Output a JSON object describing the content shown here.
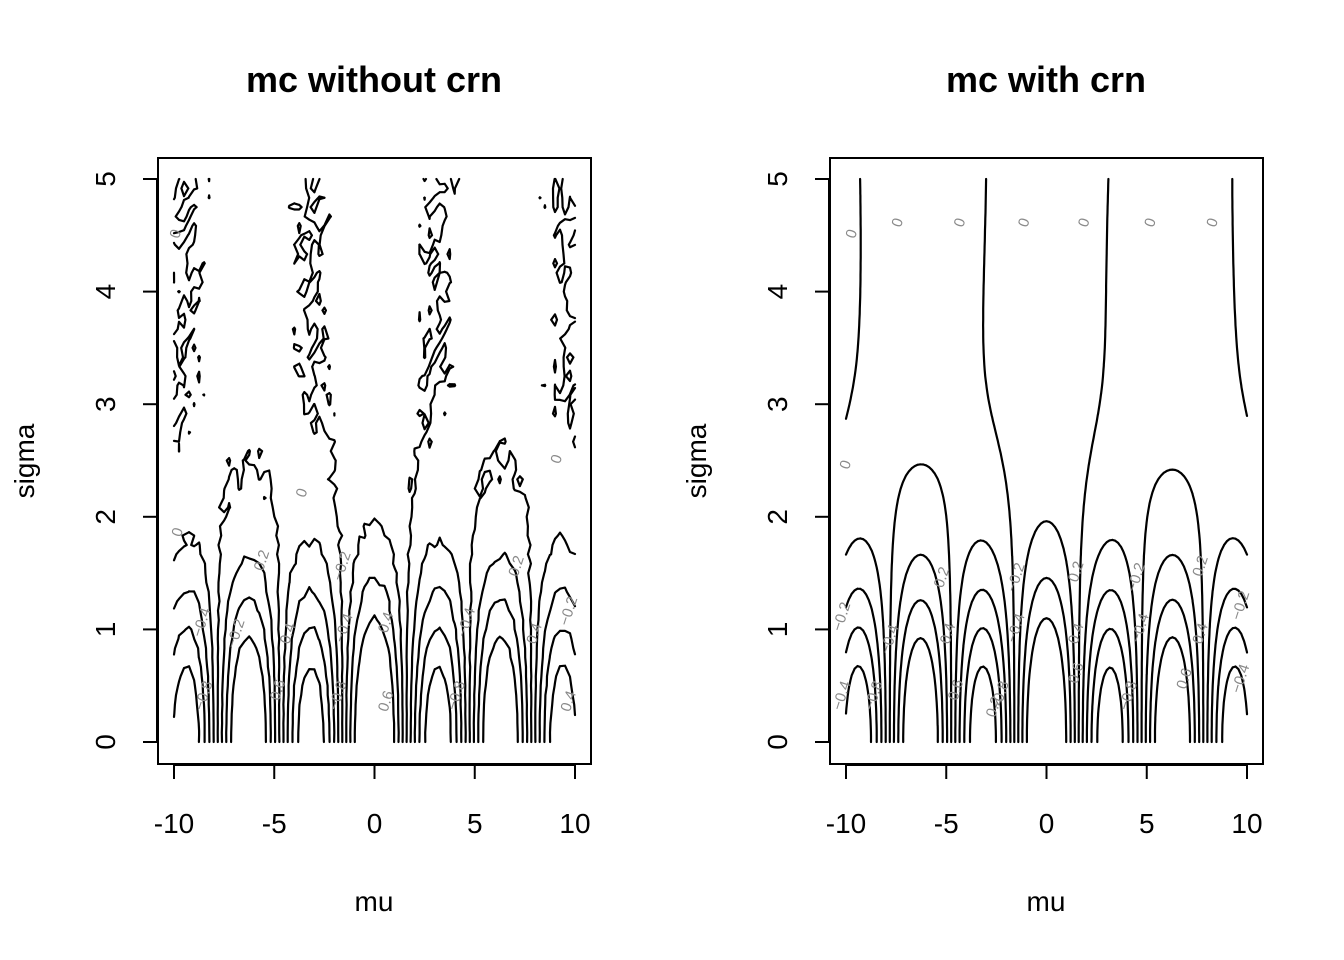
{
  "chart_data": [
    {
      "type": "contour",
      "title": "mc without crn",
      "xlabel": "mu",
      "ylabel": "sigma",
      "xlim": [
        -10,
        10
      ],
      "ylim": [
        0,
        5
      ],
      "xticks": [
        -10,
        -5,
        0,
        5,
        10
      ],
      "xtick_labels": [
        "-10",
        "-5",
        "0",
        "5",
        "10"
      ],
      "yticks": [
        0,
        1,
        2,
        3,
        4,
        5
      ],
      "ytick_labels": [
        "0",
        "1",
        "2",
        "3",
        "4",
        "5"
      ],
      "contour_levels": [
        -0.8,
        -0.6,
        -0.4,
        -0.2,
        0,
        0.2,
        0.4,
        0.6
      ],
      "noisy": true,
      "contour_labels": [
        {
          "text": "0",
          "x": -9.6,
          "y": 1.85
        },
        {
          "text": "−0.4",
          "x": -8.4,
          "y": 1.05
        },
        {
          "text": "−0.8",
          "x": -8.3,
          "y": 0.4
        },
        {
          "text": "−0.2",
          "x": -6.7,
          "y": 0.95
        },
        {
          "text": "0.2",
          "x": -5.4,
          "y": 1.6
        },
        {
          "text": "0.4",
          "x": -4.1,
          "y": 0.95
        },
        {
          "text": "0.6",
          "x": -4.6,
          "y": 0.45
        },
        {
          "text": "−0.2",
          "x": -1.4,
          "y": 1.55
        },
        {
          "text": "−0.4",
          "x": -1.3,
          "y": 1.0
        },
        {
          "text": "−0.8",
          "x": -1.6,
          "y": 0.4
        },
        {
          "text": "0.4",
          "x": 0.8,
          "y": 1.05
        },
        {
          "text": "0.6",
          "x": 0.8,
          "y": 0.35
        },
        {
          "text": "0",
          "x": -3.4,
          "y": 2.2
        },
        {
          "text": "−0.4",
          "x": 4.8,
          "y": 1.05
        },
        {
          "text": "−0.8",
          "x": 4.3,
          "y": 0.4
        },
        {
          "text": "0.2",
          "x": 7.3,
          "y": 1.55
        },
        {
          "text": "0.4",
          "x": 8.2,
          "y": 0.95
        },
        {
          "text": "0.4",
          "x": 9.9,
          "y": 0.35
        },
        {
          "text": "−0.2",
          "x": 9.9,
          "y": 1.15
        },
        {
          "text": "0",
          "x": 9.3,
          "y": 2.5
        },
        {
          "text": "0",
          "x": -9.7,
          "y": 4.5
        }
      ]
    },
    {
      "type": "contour",
      "title": "mc with crn",
      "xlabel": "mu",
      "ylabel": "sigma",
      "xlim": [
        -10,
        10
      ],
      "ylim": [
        0,
        5
      ],
      "xticks": [
        -10,
        -5,
        0,
        5,
        10
      ],
      "xtick_labels": [
        "-10",
        "-5",
        "0",
        "5",
        "10"
      ],
      "yticks": [
        0,
        1,
        2,
        3,
        4,
        5
      ],
      "ytick_labels": [
        "0",
        "1",
        "2",
        "3",
        "4",
        "5"
      ],
      "contour_levels": [
        -0.8,
        -0.6,
        -0.4,
        -0.2,
        0,
        0.2,
        0.4,
        0.6
      ],
      "noisy": false,
      "contour_labels": [
        {
          "text": "0",
          "x": -9.5,
          "y": 4.5
        },
        {
          "text": "0",
          "x": -7.2,
          "y": 4.6
        },
        {
          "text": "0",
          "x": -4.1,
          "y": 4.6
        },
        {
          "text": "0",
          "x": -0.9,
          "y": 4.6
        },
        {
          "text": "0",
          "x": 2.1,
          "y": 4.6
        },
        {
          "text": "0",
          "x": 5.4,
          "y": 4.6
        },
        {
          "text": "0",
          "x": 8.5,
          "y": 4.6
        },
        {
          "text": "0",
          "x": -9.8,
          "y": 2.45
        },
        {
          "text": "−0.2",
          "x": -10.0,
          "y": 1.1
        },
        {
          "text": "−0.4",
          "x": -10.0,
          "y": 0.4
        },
        {
          "text": "−0.8",
          "x": -8.4,
          "y": 0.4
        },
        {
          "text": "−0.4",
          "x": -7.6,
          "y": 0.9
        },
        {
          "text": "0.2",
          "x": -5.0,
          "y": 1.45
        },
        {
          "text": "0.4",
          "x": -4.7,
          "y": 0.95
        },
        {
          "text": "0.6",
          "x": -4.3,
          "y": 0.45
        },
        {
          "text": "−0.2",
          "x": -1.3,
          "y": 1.45
        },
        {
          "text": "−0.4",
          "x": -1.3,
          "y": 1.0
        },
        {
          "text": "−0.8",
          "x": -2.1,
          "y": 0.4
        },
        {
          "text": "0.2",
          "x": 1.7,
          "y": 1.5
        },
        {
          "text": "0.4",
          "x": 1.7,
          "y": 0.95
        },
        {
          "text": "0.6",
          "x": 1.7,
          "y": 0.6
        },
        {
          "text": "−0.2",
          "x": 4.7,
          "y": 1.45
        },
        {
          "text": "−0.4",
          "x": 4.9,
          "y": 1.0
        },
        {
          "text": "−0.8",
          "x": 4.3,
          "y": 0.4
        },
        {
          "text": "0.2",
          "x": 7.9,
          "y": 1.55
        },
        {
          "text": "0.4",
          "x": 7.9,
          "y": 0.95
        },
        {
          "text": "0.6",
          "x": 7.1,
          "y": 0.55
        },
        {
          "text": "−0.2",
          "x": 9.9,
          "y": 1.2
        },
        {
          "text": "−0.4",
          "x": 9.9,
          "y": 0.55
        },
        {
          "text": "0.2",
          "x": -2.4,
          "y": 0.3
        }
      ]
    }
  ]
}
